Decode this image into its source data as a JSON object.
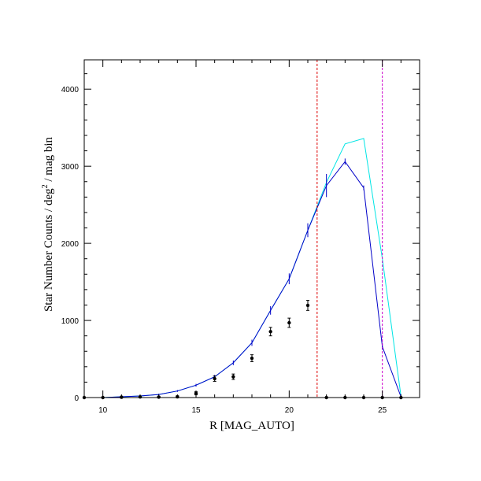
{
  "chart_data": {
    "type": "line",
    "xlabel": "R [MAG_AUTO]",
    "ylabel_main": "Star Number Counts / deg",
    "ylabel_sup": "2",
    "ylabel_tail": " / mag bin",
    "xlim": [
      9,
      27
    ],
    "ylim": [
      0,
      4380
    ],
    "x_ticks": [
      10,
      15,
      20,
      25
    ],
    "y_ticks": [
      0,
      1000,
      2000,
      3000,
      4000
    ],
    "x_minor_step": 1,
    "y_minor_step": 200,
    "grid": false,
    "series": [
      {
        "style": "line",
        "color": "#00e5e5",
        "x": [
          9,
          10,
          11,
          12,
          13,
          14,
          15,
          16,
          17,
          18,
          19,
          20,
          21,
          22,
          23,
          24,
          25,
          26
        ],
        "y": [
          0,
          0,
          10,
          20,
          40,
          85,
          160,
          270,
          450,
          710,
          1130,
          1540,
          2170,
          2790,
          3290,
          3360,
          1800,
          20
        ]
      },
      {
        "style": "line",
        "color": "#0000c8",
        "x": [
          9,
          10,
          11,
          12,
          13,
          14,
          15,
          16,
          17,
          18,
          19,
          20,
          21,
          22,
          23,
          24,
          25,
          26
        ],
        "y": [
          0,
          0,
          10,
          20,
          40,
          85,
          160,
          270,
          450,
          710,
          1130,
          1540,
          2170,
          2750,
          3060,
          2720,
          660,
          10
        ],
        "error": [
          0,
          0,
          5,
          8,
          10,
          12,
          18,
          25,
          30,
          40,
          55,
          70,
          90,
          150,
          40,
          30,
          40,
          5
        ]
      },
      {
        "style": "points",
        "color": "#000000",
        "x": [
          9,
          10,
          11,
          12,
          13,
          14,
          15,
          16,
          17,
          18,
          19,
          20,
          21,
          22,
          23,
          24,
          25,
          26
        ],
        "y": [
          0,
          0,
          5,
          8,
          6,
          10,
          55,
          245,
          270,
          510,
          855,
          970,
          1195,
          0,
          0,
          0,
          0,
          0
        ],
        "error": [
          0,
          0,
          8,
          10,
          10,
          12,
          20,
          35,
          35,
          45,
          55,
          60,
          65,
          0,
          0,
          0,
          0,
          0
        ]
      }
    ],
    "vlines": [
      {
        "x": 21.5,
        "color": "#dd0000",
        "dash": "dashed"
      },
      {
        "x": 25.0,
        "color": "#cc00cc",
        "dash": "dashed"
      }
    ]
  }
}
